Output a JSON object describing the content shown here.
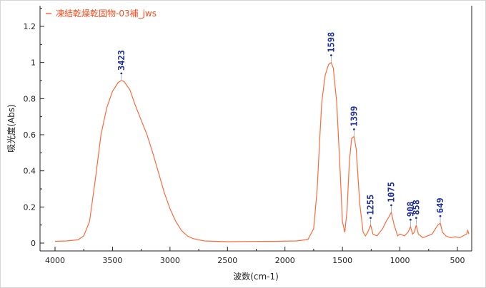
{
  "chart_data": {
    "type": "line",
    "title": "",
    "legend": {
      "entries": [
        "凍結乾燥乾固物-03補_jws"
      ],
      "placement": "top-left"
    },
    "xlabel": "波数(cm-1)",
    "ylabel": "吸光度(Abs)",
    "xlim": [
      4000,
      400
    ],
    "ylim": [
      0,
      1.3
    ],
    "x_reversed": true,
    "x_ticks": [
      4000,
      3500,
      3000,
      2500,
      2000,
      1500,
      1000,
      500
    ],
    "y_ticks": [
      0,
      0.2,
      0.4,
      0.6,
      0.8,
      1,
      1.2
    ],
    "y_tick_labels": [
      "0",
      "0.2",
      "0.4",
      "0.6",
      "0.8",
      "1",
      "1.2"
    ],
    "grid": false,
    "series": [
      {
        "name": "凍結乾燥乾固物-03補_jws",
        "color": "#ff6a3d",
        "points": [
          [
            4000,
            0.01
          ],
          [
            3900,
            0.012
          ],
          [
            3800,
            0.018
          ],
          [
            3750,
            0.04
          ],
          [
            3700,
            0.12
          ],
          [
            3650,
            0.35
          ],
          [
            3600,
            0.6
          ],
          [
            3550,
            0.75
          ],
          [
            3500,
            0.84
          ],
          [
            3450,
            0.89
          ],
          [
            3423,
            0.9
          ],
          [
            3400,
            0.895
          ],
          [
            3350,
            0.85
          ],
          [
            3300,
            0.76
          ],
          [
            3250,
            0.68
          ],
          [
            3200,
            0.6
          ],
          [
            3150,
            0.5
          ],
          [
            3100,
            0.39
          ],
          [
            3050,
            0.28
          ],
          [
            3000,
            0.19
          ],
          [
            2950,
            0.12
          ],
          [
            2900,
            0.07
          ],
          [
            2850,
            0.04
          ],
          [
            2800,
            0.025
          ],
          [
            2700,
            0.012
          ],
          [
            2500,
            0.008
          ],
          [
            2300,
            0.009
          ],
          [
            2100,
            0.01
          ],
          [
            1900,
            0.012
          ],
          [
            1800,
            0.02
          ],
          [
            1750,
            0.08
          ],
          [
            1720,
            0.3
          ],
          [
            1700,
            0.55
          ],
          [
            1680,
            0.78
          ],
          [
            1650,
            0.93
          ],
          [
            1620,
            0.99
          ],
          [
            1598,
            1.0
          ],
          [
            1580,
            0.97
          ],
          [
            1550,
            0.78
          ],
          [
            1520,
            0.4
          ],
          [
            1500,
            0.12
          ],
          [
            1480,
            0.06
          ],
          [
            1460,
            0.18
          ],
          [
            1440,
            0.45
          ],
          [
            1420,
            0.58
          ],
          [
            1399,
            0.59
          ],
          [
            1380,
            0.52
          ],
          [
            1350,
            0.22
          ],
          [
            1320,
            0.06
          ],
          [
            1300,
            0.04
          ],
          [
            1280,
            0.06
          ],
          [
            1255,
            0.1
          ],
          [
            1235,
            0.05
          ],
          [
            1200,
            0.04
          ],
          [
            1150,
            0.08
          ],
          [
            1120,
            0.12
          ],
          [
            1100,
            0.14
          ],
          [
            1075,
            0.17
          ],
          [
            1050,
            0.1
          ],
          [
            1020,
            0.04
          ],
          [
            1000,
            0.05
          ],
          [
            960,
            0.04
          ],
          [
            930,
            0.06
          ],
          [
            908,
            0.09
          ],
          [
            890,
            0.05
          ],
          [
            875,
            0.06
          ],
          [
            858,
            0.1
          ],
          [
            840,
            0.05
          ],
          [
            800,
            0.03
          ],
          [
            760,
            0.04
          ],
          [
            720,
            0.05
          ],
          [
            690,
            0.08
          ],
          [
            670,
            0.1
          ],
          [
            649,
            0.11
          ],
          [
            630,
            0.06
          ],
          [
            600,
            0.04
          ],
          [
            560,
            0.03
          ],
          [
            520,
            0.035
          ],
          [
            480,
            0.03
          ],
          [
            450,
            0.04
          ],
          [
            420,
            0.05
          ],
          [
            410,
            0.07
          ],
          [
            400,
            0.05
          ]
        ]
      }
    ],
    "peak_labels": [
      {
        "x": 3423,
        "y": 0.9,
        "label": "3423"
      },
      {
        "x": 1598,
        "y": 1.0,
        "label": "1598"
      },
      {
        "x": 1399,
        "y": 0.59,
        "label": "1399"
      },
      {
        "x": 1255,
        "y": 0.1,
        "label": "1255"
      },
      {
        "x": 1075,
        "y": 0.17,
        "label": "1075"
      },
      {
        "x": 908,
        "y": 0.09,
        "label": "908"
      },
      {
        "x": 858,
        "y": 0.1,
        "label": "858"
      },
      {
        "x": 649,
        "y": 0.11,
        "label": "649"
      }
    ]
  }
}
